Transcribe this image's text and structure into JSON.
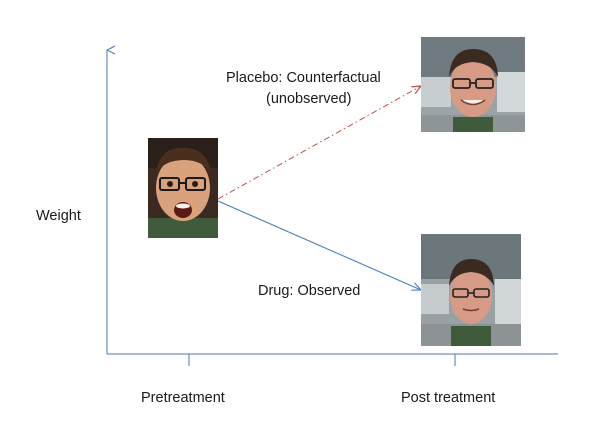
{
  "axes": {
    "y_label": "Weight",
    "x_ticks": [
      "Pretreatment",
      "Post treatment"
    ],
    "color": "#4a78b0"
  },
  "arrows": {
    "placebo": {
      "label_line1": "Placebo: Counterfactual",
      "label_line2": "(unobserved)",
      "style": "dash-dot",
      "color": "#c0504d"
    },
    "drug": {
      "label": "Drug: Observed",
      "style": "solid",
      "color": "#4f81bd"
    }
  },
  "photos": {
    "pretreatment": "surprised-face-photo",
    "placebo": "smiling-face-photo",
    "drug": "neutral-face-photo"
  }
}
